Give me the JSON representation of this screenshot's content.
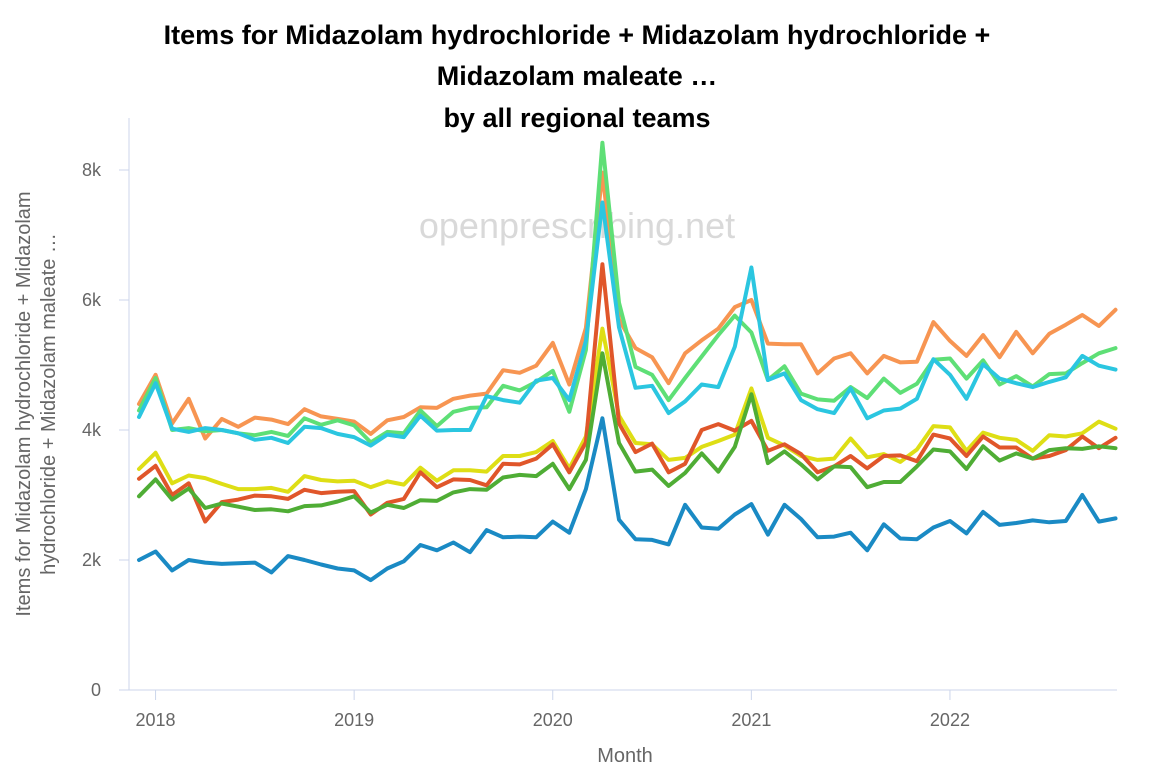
{
  "chart_data": {
    "type": "line",
    "title_lines": [
      "Items for Midazolam hydrochloride + Midazolam hydrochloride +",
      "Midazolam maleate …",
      "by all regional teams"
    ],
    "xlabel": "Month",
    "ylabel_lines": [
      "Items for Midazolam hydrochloride + Midazolam",
      "hydrochloride + Midazolam maleate …"
    ],
    "watermark": "openprescribing.net",
    "x_start": "2017-12",
    "x_ticks": [
      {
        "label": "2018",
        "index": 1
      },
      {
        "label": "2019",
        "index": 13
      },
      {
        "label": "2020",
        "index": 25
      },
      {
        "label": "2021",
        "index": 37
      },
      {
        "label": "2022",
        "index": 49
      }
    ],
    "y_ticks": [
      {
        "label": "0",
        "value": 0
      },
      {
        "label": "2k",
        "value": 2000
      },
      {
        "label": "4k",
        "value": 4000
      },
      {
        "label": "6k",
        "value": 6000
      },
      {
        "label": "8k",
        "value": 8000
      }
    ],
    "ylim": [
      0,
      8800
    ],
    "series": [
      {
        "name": "orange",
        "color": "#f79552",
        "values": [
          4400,
          4850,
          4100,
          4480,
          3870,
          4170,
          4050,
          4190,
          4160,
          4090,
          4320,
          4210,
          4170,
          4130,
          3940,
          4150,
          4200,
          4350,
          4340,
          4480,
          4530,
          4560,
          4920,
          4880,
          4990,
          5340,
          4700,
          5570,
          7960,
          5700,
          5260,
          5120,
          4720,
          5180,
          5380,
          5560,
          5890,
          6000,
          5330,
          5320,
          5320,
          4870,
          5100,
          5180,
          4870,
          5140,
          5040,
          5050,
          5660,
          5370,
          5140,
          5460,
          5120,
          5510,
          5180,
          5480,
          5620,
          5770,
          5600,
          5850
        ]
      },
      {
        "name": "light-green",
        "color": "#5edf76",
        "values": [
          4300,
          4800,
          4000,
          4030,
          3980,
          4000,
          3950,
          3920,
          3970,
          3910,
          4180,
          4080,
          4150,
          4070,
          3810,
          3970,
          3950,
          4300,
          4060,
          4280,
          4340,
          4350,
          4680,
          4610,
          4740,
          4910,
          4280,
          5230,
          8420,
          5960,
          4970,
          4850,
          4460,
          4800,
          5130,
          5460,
          5760,
          5500,
          4770,
          4980,
          4560,
          4470,
          4450,
          4660,
          4490,
          4790,
          4570,
          4710,
          5080,
          5100,
          4790,
          5070,
          4700,
          4830,
          4670,
          4860,
          4870,
          5030,
          5180,
          5260
        ]
      },
      {
        "name": "cyan",
        "color": "#2bc6e0",
        "values": [
          4200,
          4720,
          4020,
          3970,
          4030,
          4000,
          3950,
          3850,
          3880,
          3800,
          4050,
          4030,
          3940,
          3890,
          3760,
          3930,
          3890,
          4220,
          3990,
          4000,
          4000,
          4520,
          4460,
          4420,
          4760,
          4800,
          4460,
          5370,
          7500,
          5580,
          4650,
          4680,
          4260,
          4440,
          4700,
          4660,
          5280,
          6500,
          4770,
          4870,
          4460,
          4320,
          4260,
          4640,
          4180,
          4300,
          4330,
          4480,
          5090,
          4850,
          4480,
          5010,
          4790,
          4720,
          4660,
          4740,
          4810,
          5140,
          4990,
          4930
        ]
      },
      {
        "name": "yellow",
        "color": "#dede15",
        "values": [
          3400,
          3650,
          3180,
          3300,
          3260,
          3170,
          3090,
          3090,
          3110,
          3050,
          3290,
          3230,
          3210,
          3220,
          3120,
          3210,
          3160,
          3420,
          3220,
          3380,
          3380,
          3360,
          3600,
          3600,
          3660,
          3830,
          3410,
          3900,
          5560,
          4220,
          3800,
          3780,
          3540,
          3570,
          3740,
          3830,
          3930,
          4640,
          3880,
          3760,
          3600,
          3540,
          3560,
          3870,
          3580,
          3630,
          3510,
          3700,
          4060,
          4040,
          3680,
          3960,
          3880,
          3850,
          3680,
          3920,
          3900,
          3950,
          4130,
          4020
        ]
      },
      {
        "name": "red-orange",
        "color": "#e0562a",
        "values": [
          3250,
          3450,
          3000,
          3180,
          2590,
          2890,
          2930,
          2990,
          2980,
          2940,
          3080,
          3030,
          3050,
          3060,
          2700,
          2880,
          2940,
          3350,
          3120,
          3240,
          3230,
          3150,
          3480,
          3470,
          3560,
          3780,
          3350,
          3810,
          6550,
          4100,
          3660,
          3790,
          3350,
          3480,
          4000,
          4090,
          3990,
          4140,
          3680,
          3780,
          3630,
          3350,
          3440,
          3600,
          3410,
          3600,
          3610,
          3520,
          3930,
          3870,
          3600,
          3900,
          3730,
          3730,
          3560,
          3600,
          3690,
          3900,
          3720,
          3880
        ]
      },
      {
        "name": "dark-green",
        "color": "#4fad35",
        "values": [
          2980,
          3240,
          2930,
          3100,
          2800,
          2870,
          2820,
          2770,
          2780,
          2750,
          2830,
          2840,
          2900,
          2980,
          2730,
          2850,
          2800,
          2920,
          2910,
          3040,
          3090,
          3080,
          3270,
          3310,
          3290,
          3480,
          3090,
          3540,
          5180,
          3800,
          3360,
          3390,
          3140,
          3340,
          3640,
          3360,
          3740,
          4550,
          3490,
          3670,
          3470,
          3240,
          3440,
          3430,
          3120,
          3200,
          3200,
          3440,
          3700,
          3670,
          3400,
          3750,
          3530,
          3640,
          3560,
          3690,
          3720,
          3710,
          3750,
          3720
        ]
      },
      {
        "name": "blue",
        "color": "#1a8ac4",
        "values": [
          2000,
          2130,
          1840,
          2000,
          1960,
          1940,
          1950,
          1960,
          1810,
          2060,
          2000,
          1930,
          1870,
          1840,
          1690,
          1870,
          1980,
          2230,
          2150,
          2270,
          2120,
          2460,
          2350,
          2360,
          2350,
          2590,
          2420,
          3090,
          4180,
          2620,
          2320,
          2310,
          2240,
          2850,
          2500,
          2480,
          2700,
          2860,
          2390,
          2850,
          2630,
          2350,
          2360,
          2420,
          2150,
          2550,
          2330,
          2320,
          2500,
          2600,
          2410,
          2740,
          2540,
          2570,
          2610,
          2580,
          2600,
          3000,
          2590,
          2640
        ]
      }
    ]
  }
}
